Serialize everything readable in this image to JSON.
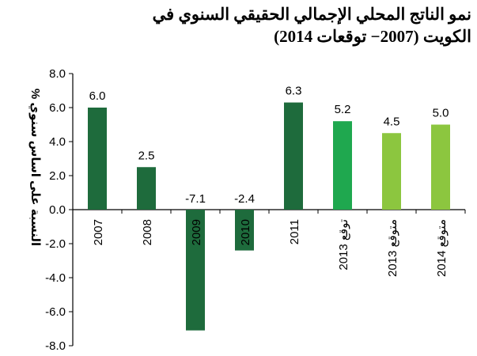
{
  "chart_data": {
    "type": "bar",
    "title": "نمو الناتج المحلي الإجمالي الحقيقي السنوي في الكويت (2007− توقعات 2014)",
    "ylabel": "% النسبة على اساس سنوي",
    "xlabel": "",
    "ylim": [
      -8.0,
      8.0
    ],
    "yticks": [
      "8.0",
      "6.0",
      "4.0",
      "2.0",
      "0.0",
      "-2.0",
      "-4.0",
      "-6.0",
      "-8.0"
    ],
    "grid": false,
    "legend": "none",
    "categories": [
      "2007",
      "2008",
      "2009",
      "2010",
      "2011",
      "توقع 2013",
      "2013 متوقع",
      "2014 متوقع"
    ],
    "values": [
      6.0,
      2.5,
      -7.1,
      -2.4,
      6.3,
      5.2,
      4.5,
      5.0
    ],
    "value_labels": [
      "6.0",
      "2.5",
      "-7.1",
      "-2.4",
      "6.3",
      "5.2",
      "4.5",
      "5.0"
    ],
    "bar_colors": [
      "#1e6b3c",
      "#1e6b3c",
      "#1e6b3c",
      "#1e6b3c",
      "#1e6b3c",
      "#1fa84f",
      "#8cc63f",
      "#8cc63f"
    ]
  }
}
